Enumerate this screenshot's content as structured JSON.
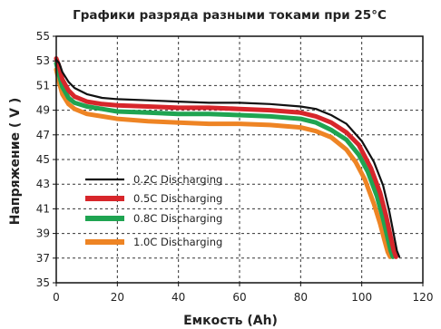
{
  "chart_data": {
    "type": "line",
    "title": "Графики разряда разными токами при 25°C",
    "xlabel": "Емкость (Ah)",
    "ylabel": "Напряжение ( V )",
    "xlim": [
      0,
      120
    ],
    "ylim": [
      35,
      55
    ],
    "xticks": [
      0,
      20,
      40,
      60,
      80,
      100,
      120
    ],
    "yticks": [
      35,
      37,
      39,
      41,
      43,
      45,
      47,
      49,
      51,
      53,
      55
    ],
    "grid": true,
    "legend_position": "lower-left",
    "series": [
      {
        "name": "0.2C Discharging",
        "color": "#111111",
        "x": [
          0,
          1,
          2,
          4,
          6,
          10,
          15,
          20,
          30,
          40,
          50,
          60,
          70,
          80,
          85,
          90,
          95,
          100,
          104,
          107,
          109,
          110.5,
          111.5,
          112.3
        ],
        "y": [
          53.1,
          52.8,
          52.1,
          51.3,
          50.8,
          50.3,
          50.0,
          49.9,
          49.8,
          49.7,
          49.6,
          49.6,
          49.5,
          49.3,
          49.1,
          48.6,
          47.9,
          46.5,
          44.8,
          42.9,
          40.8,
          38.9,
          37.6,
          37.1
        ]
      },
      {
        "name": "0.5C Discharging",
        "color": "#d7262b",
        "x": [
          0,
          1,
          2,
          4,
          6,
          10,
          15,
          20,
          30,
          40,
          50,
          60,
          70,
          80,
          85,
          90,
          95,
          99,
          103,
          106,
          108,
          109.5,
          110.5,
          111.2
        ],
        "y": [
          53.2,
          52.5,
          51.5,
          50.6,
          50.1,
          49.7,
          49.5,
          49.4,
          49.3,
          49.2,
          49.2,
          49.1,
          49.0,
          48.8,
          48.5,
          48.0,
          47.2,
          46.2,
          44.3,
          42.3,
          40.4,
          38.7,
          37.6,
          37.1
        ]
      },
      {
        "name": "0.8C Discharging",
        "color": "#1fa451",
        "x": [
          0,
          1,
          2,
          4,
          6,
          10,
          15,
          20,
          30,
          40,
          50,
          60,
          70,
          80,
          85,
          90,
          95,
          99,
          102,
          105,
          107,
          108.5,
          109.5,
          110.2
        ],
        "y": [
          52.8,
          51.8,
          50.9,
          50.0,
          49.6,
          49.3,
          49.1,
          48.9,
          48.8,
          48.7,
          48.7,
          48.6,
          48.5,
          48.3,
          48.0,
          47.4,
          46.6,
          45.4,
          44.0,
          42.0,
          40.2,
          38.6,
          37.6,
          37.1
        ]
      },
      {
        "name": "1.0C Discharging",
        "color": "#ee8424",
        "x": [
          0,
          1,
          2,
          4,
          6,
          10,
          15,
          20,
          30,
          40,
          50,
          60,
          70,
          80,
          85,
          90,
          95,
          98,
          101,
          104,
          106,
          107.5,
          108.5,
          109.3
        ],
        "y": [
          52.3,
          51.2,
          50.3,
          49.5,
          49.1,
          48.7,
          48.5,
          48.3,
          48.1,
          48.0,
          47.9,
          47.9,
          47.8,
          47.6,
          47.3,
          46.8,
          45.8,
          44.8,
          43.4,
          41.4,
          39.8,
          38.4,
          37.5,
          37.1
        ]
      }
    ]
  }
}
